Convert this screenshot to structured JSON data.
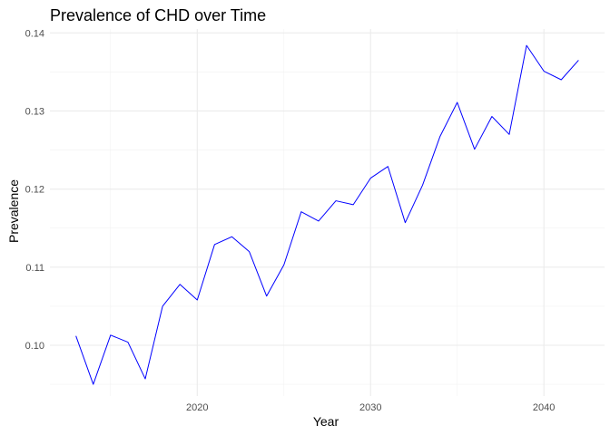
{
  "chart_data": {
    "type": "line",
    "title": "Prevalence of CHD over Time",
    "xlabel": "Year",
    "ylabel": "Prevalence",
    "xlim": [
      2011.5,
      2043.5
    ],
    "ylim": [
      0.0935,
      0.1405
    ],
    "x_ticks": [
      2020,
      2030,
      2040
    ],
    "y_ticks": [
      0.1,
      0.11,
      0.12,
      0.13,
      0.14
    ],
    "y_tick_labels": [
      "0.10",
      "0.11",
      "0.12",
      "0.13",
      "0.14"
    ],
    "grid": true,
    "legend": "none",
    "line_color": "#0000ff",
    "x": [
      2013,
      2014,
      2015,
      2016,
      2017,
      2018,
      2019,
      2020,
      2021,
      2022,
      2023,
      2024,
      2025,
      2026,
      2027,
      2028,
      2029,
      2030,
      2031,
      2032,
      2033,
      2034,
      2035,
      2036,
      2037,
      2038,
      2039,
      2040,
      2041,
      2042
    ],
    "y": [
      0.1012,
      0.095,
      0.1013,
      0.1004,
      0.0957,
      0.105,
      0.1078,
      0.1058,
      0.1129,
      0.1139,
      0.112,
      0.1063,
      0.1103,
      0.1171,
      0.1159,
      0.1185,
      0.118,
      0.1214,
      0.1229,
      0.1157,
      0.1205,
      0.1267,
      0.1311,
      0.1251,
      0.1293,
      0.127,
      0.1384,
      0.1351,
      0.134,
      0.1365
    ]
  }
}
